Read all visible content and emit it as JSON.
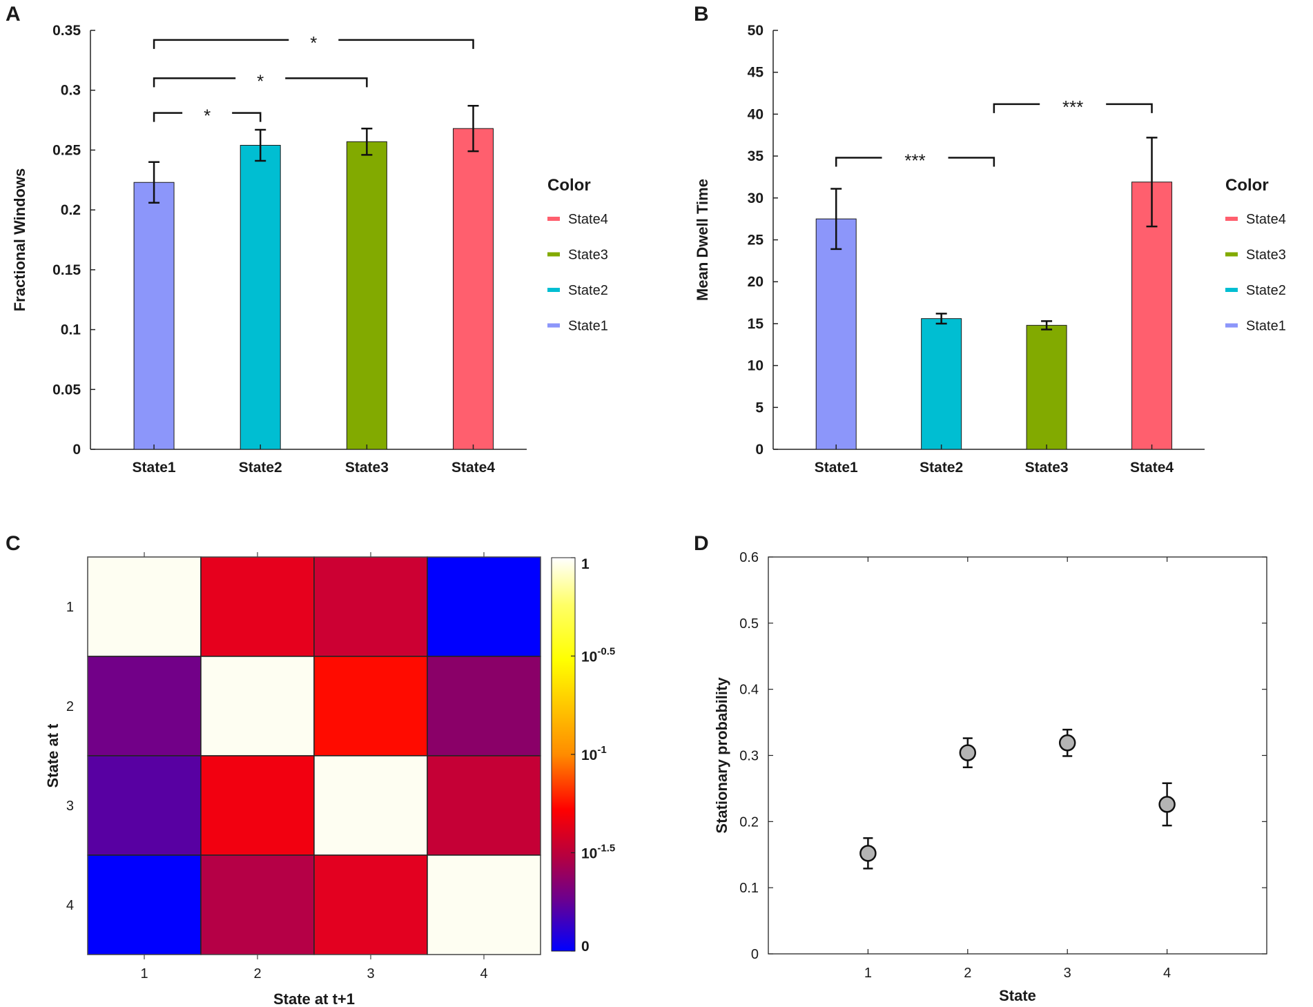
{
  "panels": {
    "A": {
      "label": "A",
      "chart_data": {
        "type": "bar",
        "categories": [
          "State1",
          "State2",
          "State3",
          "State4"
        ],
        "values": [
          0.223,
          0.254,
          0.257,
          0.268
        ],
        "errors": [
          0.017,
          0.013,
          0.011,
          0.019
        ],
        "colors": [
          "#8c96fa",
          "#00bed2",
          "#82aa00",
          "#ff5f6e"
        ],
        "ylabel": "Fractional Windows",
        "xlabel": "",
        "ylim": [
          0,
          0.35
        ],
        "yticks": [
          0,
          0.05,
          0.1,
          0.15,
          0.2,
          0.25,
          0.3,
          0.35
        ],
        "ytick_labels": [
          "0",
          "0.05",
          "0.1",
          "0.15",
          "0.2",
          "0.25",
          "0.3",
          "0.35"
        ],
        "significance": [
          {
            "from": 0,
            "to": 3,
            "label": "*",
            "y": 0.342
          },
          {
            "from": 0,
            "to": 2,
            "label": "*",
            "y": 0.31
          },
          {
            "from": 0,
            "to": 1,
            "label": "*",
            "y": 0.281
          }
        ],
        "legend": {
          "title": "Color",
          "items": [
            "State4",
            "State3",
            "State2",
            "State1"
          ],
          "colors": [
            "#ff5f6e",
            "#82aa00",
            "#00bed2",
            "#8c96fa"
          ],
          "position": "right"
        }
      }
    },
    "B": {
      "label": "B",
      "chart_data": {
        "type": "bar",
        "categories": [
          "State1",
          "State2",
          "State3",
          "State4"
        ],
        "values": [
          27.5,
          15.6,
          14.8,
          31.9
        ],
        "errors": [
          3.6,
          0.6,
          0.5,
          5.3
        ],
        "colors": [
          "#8c96fa",
          "#00bed2",
          "#82aa00",
          "#ff5f6e"
        ],
        "ylabel": "Mean Dwell Time",
        "xlabel": "",
        "ylim": [
          0,
          50
        ],
        "yticks": [
          0,
          5,
          10,
          15,
          20,
          25,
          30,
          35,
          40,
          45,
          50
        ],
        "ytick_labels": [
          "0",
          "5",
          "10",
          "15",
          "20",
          "25",
          "30",
          "35",
          "40",
          "45",
          "50"
        ],
        "significance": [
          {
            "from": 0,
            "to": 1.5,
            "label": "***",
            "y": 34.8
          },
          {
            "from": 1.5,
            "to": 3,
            "label": "***",
            "y": 41.2
          }
        ],
        "legend": {
          "title": "Color",
          "items": [
            "State4",
            "State3",
            "State2",
            "State1"
          ],
          "colors": [
            "#ff5f6e",
            "#82aa00",
            "#00bed2",
            "#8c96fa"
          ],
          "position": "right"
        }
      }
    },
    "C": {
      "label": "C",
      "chart_data": {
        "type": "heatmap",
        "xlabel": "State at t+1",
        "ylabel": "State at t",
        "x_categories": [
          "1",
          "2",
          "3",
          "4"
        ],
        "y_categories": [
          "1",
          "2",
          "3",
          "4"
        ],
        "cell_colors": [
          [
            "#fefef2",
            "#e6001d",
            "#cc0033",
            "#0000ff"
          ],
          [
            "#720088",
            "#fefef2",
            "#ff0b00",
            "#8a0068"
          ],
          [
            "#5800a2",
            "#f20010",
            "#fefef2",
            "#c50036"
          ],
          [
            "#0000ff",
            "#b50046",
            "#e30020",
            "#fefef2"
          ]
        ],
        "colorbar": {
          "scale": "log",
          "ticks": [
            {
              "base": "1",
              "exp": ""
            },
            {
              "base": "10",
              "exp": "-0.5"
            },
            {
              "base": "10",
              "exp": "-1"
            },
            {
              "base": "10",
              "exp": "-1.5"
            },
            {
              "base": "0",
              "exp": ""
            }
          ],
          "gradient_colors": [
            "#ffffff",
            "#ffff66",
            "#ffff00",
            "#ff8c00",
            "#ff0000",
            "#b50040",
            "#6a0090",
            "#0000ff"
          ]
        }
      }
    },
    "D": {
      "label": "D",
      "chart_data": {
        "type": "scatter",
        "x": [
          1,
          2,
          3,
          4
        ],
        "y": [
          0.152,
          0.304,
          0.319,
          0.226
        ],
        "errors": [
          0.023,
          0.022,
          0.02,
          0.032
        ],
        "xlabel": "State",
        "ylabel": "Stationary probability",
        "xlim": [
          0,
          5
        ],
        "ylim": [
          0,
          0.6
        ],
        "xticks": [
          1,
          2,
          3,
          4
        ],
        "xtick_labels": [
          "1",
          "2",
          "3",
          "4"
        ],
        "yticks": [
          0,
          0.1,
          0.2,
          0.3,
          0.4,
          0.5,
          0.6
        ],
        "ytick_labels": [
          "0",
          "0.1",
          "0.2",
          "0.3",
          "0.4",
          "0.5",
          "0.6"
        ],
        "marker_color": "#b4b4b4"
      }
    }
  }
}
